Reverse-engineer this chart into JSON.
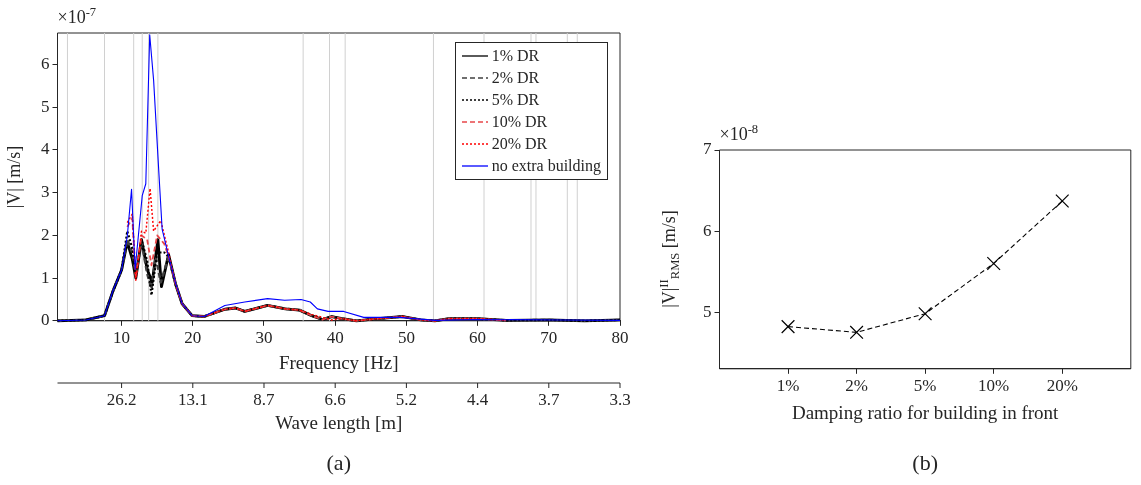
{
  "chart_data": [
    {
      "type": "line",
      "xlabel": "Frequency [Hz]",
      "ylabel": "|V| [m/s]",
      "x2label": "Wave length [m]",
      "xlim": [
        1,
        80
      ],
      "xticks": [
        10,
        20,
        30,
        40,
        50,
        60,
        70,
        80
      ],
      "ylim": [
        0,
        6.74
      ],
      "yticks": [
        0,
        1,
        2,
        3,
        4,
        5,
        6
      ],
      "legend": "top right",
      "marker": "none",
      "grid": false,
      "annotations": [
        "×10$^{-7}$",
        "(a)",
        "26.2",
        "13.1",
        "8.7",
        "6.6",
        "5.2",
        "4.4",
        "3.7",
        "3.3"
      ],
      "ref_lines": [
        {
          "axis": "x",
          "value": 2.4,
          "color": "#d0d0d0"
        },
        {
          "axis": "x",
          "value": 7.6,
          "color": "#d0d0d0"
        },
        {
          "axis": "x",
          "value": 11.7,
          "color": "#d0d0d0"
        },
        {
          "axis": "x",
          "value": 12.9,
          "color": "#d0d0d0"
        },
        {
          "axis": "x",
          "value": 13.8,
          "color": "#d0d0d0"
        },
        {
          "axis": "x",
          "value": 15.1,
          "color": "#d0d0d0"
        },
        {
          "axis": "x",
          "value": 35.5,
          "color": "#d0d0d0"
        },
        {
          "axis": "x",
          "value": 39.2,
          "color": "#d0d0d0"
        },
        {
          "axis": "x",
          "value": 41.4,
          "color": "#d0d0d0"
        },
        {
          "axis": "x",
          "value": 53.8,
          "color": "#d0d0d0"
        },
        {
          "axis": "x",
          "value": 60.9,
          "color": "#d0d0d0"
        },
        {
          "axis": "x",
          "value": 67.5,
          "color": "#d0d0d0"
        },
        {
          "axis": "x",
          "value": 68.2,
          "color": "#d0d0d0"
        },
        {
          "axis": "x",
          "value": 72.6,
          "color": "#d0d0d0"
        },
        {
          "axis": "x",
          "value": 74.0,
          "color": "#d0d0d0"
        }
      ],
      "series": [
        {
          "name": "1% DR",
          "color": "#000000",
          "line_style": "solid",
          "x": [
            1,
            5,
            7.6,
            8.8,
            10,
            10.8,
            11.5,
            12,
            12.8,
            13.6,
            14.3,
            15.1,
            15.6,
            16.6,
            17.6,
            18.5,
            19.9,
            21.6,
            24.5,
            26,
            27.3,
            30.5,
            33,
            35,
            36.7,
            38.2,
            39.5,
            41,
            43,
            46,
            49.5,
            52,
            54,
            56,
            60,
            64,
            70,
            75,
            80
          ],
          "values": [
            0,
            0.02,
            0.12,
            0.7,
            1.19,
            1.85,
            1.45,
            1.0,
            1.9,
            1.2,
            0.9,
            1.9,
            0.8,
            1.55,
            0.85,
            0.4,
            0.12,
            0.1,
            0.27,
            0.3,
            0.22,
            0.36,
            0.28,
            0.25,
            0.12,
            0.03,
            0.1,
            0.05,
            0,
            0.05,
            0.1,
            0.02,
            0,
            0.05,
            0.05,
            0.01,
            0.02,
            0,
            0.02
          ]
        },
        {
          "name": "2% DR",
          "color": "#404040",
          "line_style": "dashed",
          "x": [
            1,
            5,
            7.6,
            8.8,
            10,
            10.8,
            11.5,
            12,
            12.8,
            13.6,
            14.2,
            14.8,
            15.5,
            16.6,
            17.6,
            18.5,
            19.9,
            21.6,
            24.5,
            26,
            27.3,
            30.5,
            33,
            35,
            36.7,
            38.2,
            39.5,
            41,
            43,
            46,
            49.5,
            52,
            54,
            56,
            60,
            64,
            70,
            75,
            80
          ],
          "values": [
            0,
            0.02,
            0.12,
            0.7,
            1.19,
            1.9,
            1.6,
            1.05,
            1.85,
            1.1,
            0.75,
            1.5,
            0.9,
            1.5,
            0.85,
            0.4,
            0.12,
            0.1,
            0.27,
            0.3,
            0.22,
            0.36,
            0.28,
            0.25,
            0.12,
            0.03,
            0.1,
            0.05,
            0,
            0.05,
            0.1,
            0.02,
            0,
            0.05,
            0.05,
            0.01,
            0.02,
            0,
            0.02
          ]
        },
        {
          "name": "5% DR",
          "color": "#000000",
          "line_style": "dotted",
          "x": [
            1,
            5,
            7.6,
            8.8,
            10,
            10.8,
            11.5,
            12,
            12.8,
            13.6,
            14.2,
            15,
            16,
            16.6,
            17.6,
            18.5,
            19.9,
            21.6,
            24.5,
            26,
            27.3,
            30.5,
            33,
            35,
            36.7,
            38.2,
            39.5,
            41,
            43,
            46,
            49.5,
            52,
            54,
            56,
            60,
            64,
            70,
            75,
            80
          ],
          "values": [
            0,
            0.02,
            0.12,
            0.7,
            1.19,
            2.1,
            1.7,
            1.05,
            1.9,
            1.4,
            0.6,
            1.6,
            1.6,
            1.5,
            0.85,
            0.4,
            0.12,
            0.1,
            0.27,
            0.3,
            0.22,
            0.36,
            0.28,
            0.25,
            0.12,
            0.03,
            0.1,
            0.05,
            0,
            0.05,
            0.1,
            0.02,
            0,
            0.05,
            0.05,
            0.01,
            0.02,
            0,
            0.02
          ]
        },
        {
          "name": "10% DR",
          "color": "#e8474a",
          "line_style": "dashed",
          "x": [
            10.8,
            11.5,
            12,
            12.8,
            13.6,
            14.2,
            15,
            16,
            16.6,
            17.6,
            18.5,
            19.9,
            21.6,
            24.5,
            26,
            27.3,
            30.5,
            33,
            35,
            36.7,
            38.2,
            39.5,
            41,
            43,
            46,
            49.5,
            52,
            54,
            56,
            60,
            64
          ],
          "values": [
            2.2,
            2.4,
            1.0,
            2.0,
            1.9,
            1.3,
            2.0,
            1.8,
            1.5,
            0.85,
            0.4,
            0.12,
            0.1,
            0.27,
            0.3,
            0.22,
            0.36,
            0.28,
            0.25,
            0.12,
            0.03,
            0.1,
            0.05,
            0,
            0.05,
            0.1,
            0.02,
            0,
            0.05,
            0.05,
            0.01
          ]
        },
        {
          "name": "20% DR",
          "color": "#ff0000",
          "line_style": "dotted",
          "x": [
            10.8,
            11.5,
            12,
            12.8,
            13.4,
            14,
            14.5,
            15.5,
            16.6,
            17.6,
            18.5,
            19.9,
            21.6,
            24.5,
            26,
            27.3,
            30.5,
            33,
            35,
            36.7,
            38.2,
            39.5,
            41,
            43,
            46,
            49.5,
            52,
            54,
            56,
            60,
            64
          ],
          "values": [
            2.3,
            2.5,
            0.95,
            2.1,
            2.05,
            3.1,
            2.1,
            2.35,
            1.6,
            0.85,
            0.4,
            0.12,
            0.1,
            0.27,
            0.3,
            0.22,
            0.36,
            0.28,
            0.25,
            0.15,
            0.08,
            0.02,
            0.05,
            0,
            0.05,
            0.1,
            0.02,
            0,
            0.05,
            0.05,
            0.01
          ]
        },
        {
          "name": "no extra building",
          "color": "#0000ff",
          "line_style": "solid",
          "x": [
            1,
            5,
            7.6,
            8.8,
            10,
            10.8,
            11.4,
            11.9,
            12.9,
            13.4,
            13.95,
            14.5,
            15.2,
            15.7,
            16.6,
            17.6,
            18.5,
            19.9,
            21.6,
            24.5,
            27.3,
            30.5,
            32.9,
            35.2,
            36.5,
            37.5,
            39,
            41.2,
            44,
            49.1,
            54,
            60,
            72,
            80
          ],
          "values": [
            0,
            0.02,
            0.12,
            0.71,
            1.19,
            1.98,
            3.08,
            1.2,
            2.93,
            3.21,
            6.7,
            5.63,
            3.57,
            2.14,
            1.51,
            0.87,
            0.4,
            0.12,
            0.1,
            0.36,
            0.44,
            0.52,
            0.48,
            0.5,
            0.44,
            0.28,
            0.22,
            0.22,
            0.08,
            0.08,
            0.01,
            0.03,
            0.02,
            0.01
          ]
        }
      ]
    },
    {
      "type": "line",
      "xlabel": "Damping ratio for building in front",
      "ylabel": "|V|$^{II}$$_{RMS}$ [m/s]",
      "categories": [
        "1%",
        "2%",
        "5%",
        "10%",
        "20%"
      ],
      "ylim": [
        4.3,
        7
      ],
      "yticks": [
        5,
        6,
        7
      ],
      "marker": "cross",
      "line_style": "dashed",
      "grid": false,
      "annotations": [
        "×10$^{-8}$",
        "(b)"
      ],
      "series": [
        {
          "color": "#000000",
          "values": [
            4.82,
            4.75,
            4.98,
            5.6,
            6.37
          ]
        }
      ]
    }
  ]
}
